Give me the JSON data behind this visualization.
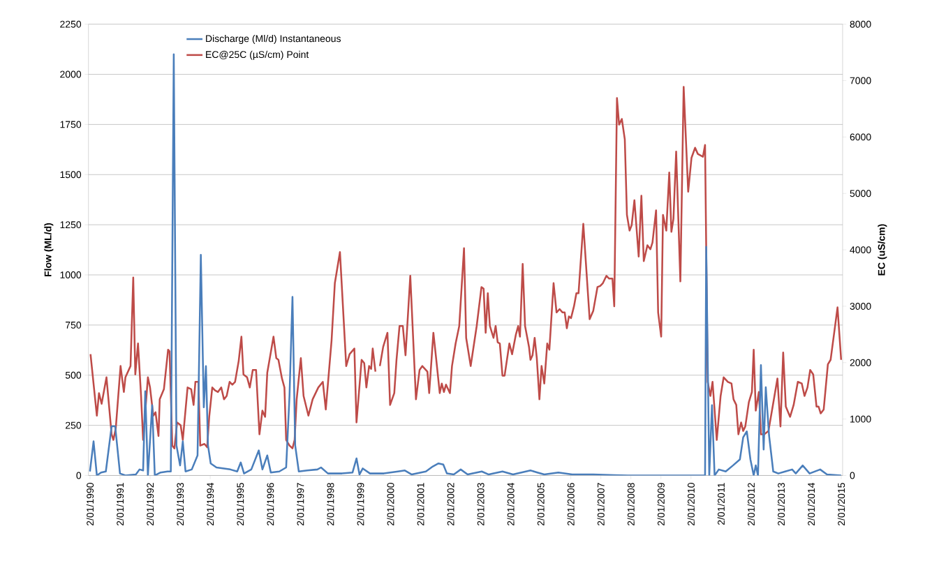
{
  "chart_data": {
    "type": "line",
    "ylabel": "Flow (ML/d)",
    "y2label": "EC (uS/cm)",
    "xlim": [
      "1989-12-14",
      "2015-01-19"
    ],
    "xticks": [
      {
        "value": "1990-01-02",
        "label": "2/01/1990"
      },
      {
        "value": "1991-01-02",
        "label": "2/01/1991"
      },
      {
        "value": "1992-01-02",
        "label": "2/01/1992"
      },
      {
        "value": "1993-01-02",
        "label": "2/01/1993"
      },
      {
        "value": "1994-01-02",
        "label": "2/01/1994"
      },
      {
        "value": "1995-01-02",
        "label": "2/01/1995"
      },
      {
        "value": "1996-01-02",
        "label": "2/01/1996"
      },
      {
        "value": "1997-01-02",
        "label": "2/01/1997"
      },
      {
        "value": "1998-01-02",
        "label": "2/01/1998"
      },
      {
        "value": "1999-01-02",
        "label": "2/01/1999"
      },
      {
        "value": "2000-01-02",
        "label": "2/01/2000"
      },
      {
        "value": "2001-01-02",
        "label": "2/01/2001"
      },
      {
        "value": "2002-01-02",
        "label": "2/01/2002"
      },
      {
        "value": "2003-01-02",
        "label": "2/01/2003"
      },
      {
        "value": "2004-01-02",
        "label": "2/01/2004"
      },
      {
        "value": "2005-01-02",
        "label": "2/01/2005"
      },
      {
        "value": "2006-01-02",
        "label": "2/01/2006"
      },
      {
        "value": "2007-01-02",
        "label": "2/01/2007"
      },
      {
        "value": "2008-01-02",
        "label": "2/01/2008"
      },
      {
        "value": "2009-01-02",
        "label": "2/01/2009"
      },
      {
        "value": "2010-01-02",
        "label": "2/01/2010"
      },
      {
        "value": "2011-01-02",
        "label": "2/01/2011"
      },
      {
        "value": "2012-01-02",
        "label": "2/01/2012"
      },
      {
        "value": "2013-01-02",
        "label": "2/01/2013"
      },
      {
        "value": "2014-01-02",
        "label": "2/01/2014"
      },
      {
        "value": "2015-01-02",
        "label": "2/01/2015"
      }
    ],
    "ylim": [
      0,
      2250
    ],
    "yticks": [
      0,
      250,
      500,
      750,
      1000,
      1250,
      1500,
      1750,
      2000,
      2250
    ],
    "y2lim": [
      0,
      8000
    ],
    "y2ticks": [
      0,
      1000,
      2000,
      3000,
      4000,
      5000,
      6000,
      7000,
      8000
    ],
    "grid": "y",
    "legend": "top left",
    "series": [
      {
        "name": "Discharge (Ml/d) Instantaneous",
        "color": "#4a7ebb",
        "axis": "y",
        "x": [
          "1990-01-01",
          "1990-02-14",
          "1990-03-26",
          "1990-05-16",
          "1990-07-13",
          "1990-09-21",
          "1990-11-04",
          "1991-01-01",
          "1991-03-08",
          "1991-07-13",
          "1991-08-26",
          "1991-10-09",
          "1991-11-04",
          "1991-12-06",
          "1992-01-27",
          "1992-02-28",
          "1992-05-09",
          "1992-08-01",
          "1992-09-10",
          "1992-10-16",
          "1992-11-18",
          "1993-01-01",
          "1993-02-03",
          "1993-03-08",
          "1993-05-23",
          "1993-08-01",
          "1993-09-10",
          "1993-10-16",
          "1993-11-11",
          "1993-12-06",
          "1994-01-08",
          "1994-03-19",
          "1994-06-11",
          "1994-09-03",
          "1994-11-26",
          "1995-01-08",
          "1995-02-17",
          "1995-05-16",
          "1995-08-15",
          "1995-09-28",
          "1995-11-26",
          "1996-01-08",
          "1996-04-21",
          "1996-07-13",
          "1996-08-23",
          "1996-09-28",
          "1996-10-31",
          "1996-12-14",
          "1997-03-26",
          "1997-07-28",
          "1997-09-10",
          "1997-12-03",
          "1998-05-23",
          "1998-09-28",
          "1998-11-15",
          "1998-12-21",
          "1999-01-30",
          "1999-04-28",
          "1999-10-13",
          "2000-04-02",
          "2000-06-25",
          "2000-09-17",
          "2001-03-08",
          "2001-05-31",
          "2001-08-08",
          "2001-10-05",
          "2001-11-18",
          "2002-02-10",
          "2002-05-05",
          "2002-07-28",
          "2003-01-16",
          "2003-04-10",
          "2003-09-24",
          "2004-01-30",
          "2004-08-30",
          "2004-11-22",
          "2005-02-14",
          "2005-08-04",
          "2006-01-19",
          "2006-10-02",
          "2007-06-14",
          "2007-11-29",
          "2010-06-22",
          "2010-07-06",
          "2010-08-12",
          "2010-09-14",
          "2010-10-16",
          "2010-12-06",
          "2011-02-28",
          "2011-05-27",
          "2011-08-19",
          "2011-09-28",
          "2011-11-11",
          "2011-12-25",
          "2012-02-03",
          "2012-02-28",
          "2012-03-26",
          "2012-05-01",
          "2012-06-03",
          "2012-06-29",
          "2012-08-08",
          "2012-09-28",
          "2012-11-29",
          "2013-02-21",
          "2013-05-16",
          "2013-06-29",
          "2013-09-21",
          "2013-12-14",
          "2014-04-21",
          "2014-07-13",
          "2015-01-01"
        ],
        "values": [
          20,
          170,
          0,
          15,
          20,
          245,
          245,
          10,
          0,
          5,
          30,
          25,
          420,
          0,
          350,
          0,
          15,
          20,
          20,
          2100,
          150,
          50,
          170,
          20,
          30,
          100,
          1100,
          340,
          545,
          150,
          60,
          40,
          35,
          30,
          20,
          65,
          10,
          30,
          125,
          30,
          100,
          15,
          20,
          40,
          400,
          890,
          150,
          20,
          25,
          30,
          40,
          10,
          10,
          15,
          85,
          5,
          35,
          10,
          10,
          20,
          25,
          5,
          20,
          45,
          60,
          55,
          10,
          5,
          30,
          5,
          20,
          5,
          20,
          5,
          25,
          15,
          5,
          15,
          5,
          5,
          2,
          0,
          0,
          1140,
          0,
          350,
          0,
          30,
          20,
          50,
          80,
          190,
          220,
          80,
          0,
          50,
          0,
          550,
          130,
          440,
          200,
          20,
          10,
          20,
          30,
          10,
          50,
          10,
          30,
          5,
          0
        ]
      },
      {
        "name": "EC@25C (µS/cm) Point",
        "color": "#be4b48",
        "axis": "y2",
        "x": [
          "1990-01-08",
          "1990-03-26",
          "1990-04-21",
          "1990-05-23",
          "1990-07-21",
          "1990-09-21",
          "1990-10-13",
          "1990-11-11",
          "1991-01-08",
          "1991-02-17",
          "1991-03-08",
          "1991-05-09",
          "1991-06-11",
          "1991-07-06",
          "1991-08-08",
          "1991-09-14",
          "1991-10-09",
          "1991-12-06",
          "1992-01-01",
          "1992-02-10",
          "1992-03-08",
          "1992-04-13",
          "1992-04-28",
          "1992-06-18",
          "1992-08-08",
          "1992-08-26",
          "1992-09-28",
          "1992-10-24",
          "1992-11-26",
          "1993-01-08",
          "1993-02-03",
          "1993-04-02",
          "1993-05-16",
          "1993-06-14",
          "1993-07-06",
          "1993-08-12",
          "1993-09-03",
          "1993-10-24",
          "1993-11-26",
          "1993-12-21",
          "1994-01-27",
          "1994-02-28",
          "1994-04-06",
          "1994-05-16",
          "1994-06-18",
          "1994-07-21",
          "1994-08-26",
          "1994-09-28",
          "1994-10-31",
          "1994-12-14",
          "1995-01-16",
          "1995-02-10",
          "1995-03-26",
          "1995-04-28",
          "1995-06-03",
          "1995-07-13",
          "1995-08-23",
          "1995-09-28",
          "1995-10-31",
          "1995-11-26",
          "1996-02-10",
          "1996-03-15",
          "1996-04-10",
          "1996-05-23",
          "1996-06-22",
          "1996-07-13",
          "1996-08-23",
          "1996-09-28",
          "1996-10-24",
          "1996-11-18",
          "1997-01-08",
          "1997-02-10",
          "1997-04-10",
          "1997-05-31",
          "1997-08-08",
          "1997-10-02",
          "1997-11-07",
          "1997-12-14",
          "1998-01-16",
          "1998-02-25",
          "1998-04-28",
          "1998-07-13",
          "1998-08-23",
          "1998-10-20",
          "1998-11-15",
          "1999-01-16",
          "1999-02-17",
          "1999-03-15",
          "1999-04-17",
          "1999-05-12",
          "1999-05-31",
          "1999-07-03",
          "1999-08-01",
          "1999-08-26",
          "1999-10-05",
          "1999-11-26",
          "1999-12-28",
          "2000-02-17",
          "2000-03-15",
          "2000-04-21",
          "2000-05-31",
          "2000-07-03",
          "2000-08-30",
          "2000-11-07",
          "2000-12-21",
          "2001-01-23",
          "2001-03-26",
          "2001-04-17",
          "2001-06-07",
          "2001-07-10",
          "2001-08-23",
          "2001-09-17",
          "2001-10-13",
          "2001-11-07",
          "2001-12-25",
          "2002-01-19",
          "2002-03-04",
          "2002-04-17",
          "2002-06-14",
          "2002-07-10",
          "2002-09-03",
          "2002-11-15",
          "2003-01-12",
          "2003-02-07",
          "2003-03-04",
          "2003-03-30",
          "2003-04-24",
          "2003-06-07",
          "2003-07-03",
          "2003-07-28",
          "2003-08-23",
          "2003-09-24",
          "2003-10-20",
          "2003-12-17",
          "2004-01-19",
          "2004-03-04",
          "2004-04-02",
          "2004-04-24",
          "2004-05-27",
          "2004-06-25",
          "2004-08-12",
          "2004-08-30",
          "2004-09-24",
          "2004-10-20",
          "2004-11-15",
          "2004-12-17",
          "2005-01-12",
          "2005-02-14",
          "2005-03-22",
          "2005-04-17",
          "2005-06-07",
          "2005-07-13",
          "2005-08-19",
          "2005-09-24",
          "2005-10-20",
          "2005-11-15",
          "2005-12-10",
          "2006-01-05",
          "2006-02-10",
          "2006-03-11",
          "2006-04-06",
          "2006-06-03",
          "2006-08-19",
          "2006-10-02",
          "2006-11-22",
          "2006-12-25",
          "2007-01-27",
          "2007-03-11",
          "2007-04-13",
          "2007-05-23",
          "2007-06-14",
          "2007-07-17",
          "2007-08-12",
          "2007-09-14",
          "2007-10-20",
          "2007-11-15",
          "2007-12-17",
          "2008-01-12",
          "2008-02-14",
          "2008-04-06",
          "2008-05-09",
          "2008-06-07",
          "2008-07-21",
          "2008-08-26",
          "2008-09-21",
          "2008-11-04",
          "2008-11-29",
          "2009-01-05",
          "2009-01-27",
          "2009-03-08",
          "2009-04-13",
          "2009-05-09",
          "2009-06-03",
          "2009-07-06",
          "2009-08-26",
          "2009-10-05",
          "2009-11-29",
          "2010-01-08",
          "2010-02-21",
          "2010-03-26",
          "2010-05-27",
          "2010-06-22",
          "2010-07-24",
          "2010-08-26",
          "2010-09-21",
          "2010-11-11",
          "2010-12-28",
          "2011-02-03",
          "2011-03-26",
          "2011-05-09",
          "2011-06-03",
          "2011-07-06",
          "2011-08-01",
          "2011-09-03",
          "2011-09-28",
          "2011-10-24",
          "2011-12-06",
          "2012-01-12",
          "2012-02-03",
          "2012-02-28",
          "2012-04-06",
          "2012-05-01",
          "2012-06-11",
          "2012-08-01",
          "2012-09-24",
          "2012-11-18",
          "2012-12-25",
          "2013-01-27",
          "2013-02-28",
          "2013-04-21",
          "2013-06-03",
          "2013-07-24",
          "2013-09-10",
          "2013-10-13",
          "2013-11-18",
          "2013-12-21",
          "2014-01-27",
          "2014-03-08",
          "2014-04-02",
          "2014-04-28",
          "2014-06-03",
          "2014-07-24",
          "2014-08-26",
          "2014-10-05",
          "2014-11-18",
          "2015-01-01"
        ],
        "values": [
          2150,
          1060,
          1460,
          1270,
          1740,
          730,
          630,
          840,
          1940,
          1480,
          1740,
          1940,
          3510,
          1790,
          2340,
          1410,
          630,
          1740,
          1560,
          1060,
          1120,
          700,
          1350,
          1530,
          2230,
          2200,
          530,
          480,
          940,
          890,
          630,
          1560,
          1530,
          1250,
          1660,
          1660,
          530,
          560,
          500,
          1040,
          1560,
          1510,
          1480,
          1560,
          1350,
          1410,
          1660,
          1610,
          1660,
          2030,
          2460,
          1790,
          1740,
          1560,
          1870,
          1870,
          730,
          1150,
          1040,
          1820,
          2460,
          2080,
          2050,
          1720,
          1560,
          630,
          530,
          480,
          630,
          1350,
          2080,
          1410,
          1060,
          1350,
          1560,
          1660,
          1170,
          1820,
          2390,
          3410,
          3960,
          1940,
          2150,
          2250,
          940,
          2050,
          1990,
          1560,
          1940,
          1890,
          2250,
          1840,
          null,
          1940,
          2280,
          2530,
          1250,
          1460,
          2050,
          2650,
          2650,
          2130,
          3540,
          1350,
          1870,
          1940,
          1840,
          1460,
          2530,
          2080,
          1460,
          1630,
          1480,
          1610,
          1460,
          1940,
          2340,
          2650,
          4030,
          2440,
          1940,
          2650,
          3340,
          3310,
          2530,
          3230,
          2650,
          2440,
          2650,
          2360,
          2340,
          1770,
          1770,
          2340,
          2150,
          2490,
          2650,
          2460,
          3750,
          2650,
          2280,
          2050,
          2130,
          2440,
          2080,
          1350,
          1940,
          1630,
          2340,
          2230,
          3410,
          2890,
          2950,
          2890,
          2890,
          2610,
          2820,
          2790,
          3000,
          3230,
          3230,
          4460,
          2770,
          2920,
          3340,
          3360,
          3410,
          3540,
          3490,
          3490,
          3000,
          6690,
          6220,
          6320,
          5960,
          4620,
          4340,
          4440,
          4880,
          3880,
          4960,
          3800,
          4080,
          4010,
          4130,
          4700,
          2890,
          2460,
          4620,
          4340,
          5370,
          4320,
          4550,
          5740,
          3440,
          6890,
          5030,
          5630,
          5810,
          5700,
          5650,
          5860,
          1660,
          1410,
          1660,
          630,
          1410,
          1740,
          1660,
          1630,
          1350,
          1250,
          730,
          940,
          790,
          870,
          1300,
          1480,
          2230,
          1150,
          1480,
          730,
          730,
          790,
          1250,
          1720,
          870,
          2180,
          1220,
          1040,
          1250,
          1660,
          1630,
          1410,
          1560,
          1870,
          1790,
          1220,
          1220,
          1100,
          1170,
          1970,
          2050,
          2490,
          2980,
          2050
        ]
      }
    ]
  }
}
